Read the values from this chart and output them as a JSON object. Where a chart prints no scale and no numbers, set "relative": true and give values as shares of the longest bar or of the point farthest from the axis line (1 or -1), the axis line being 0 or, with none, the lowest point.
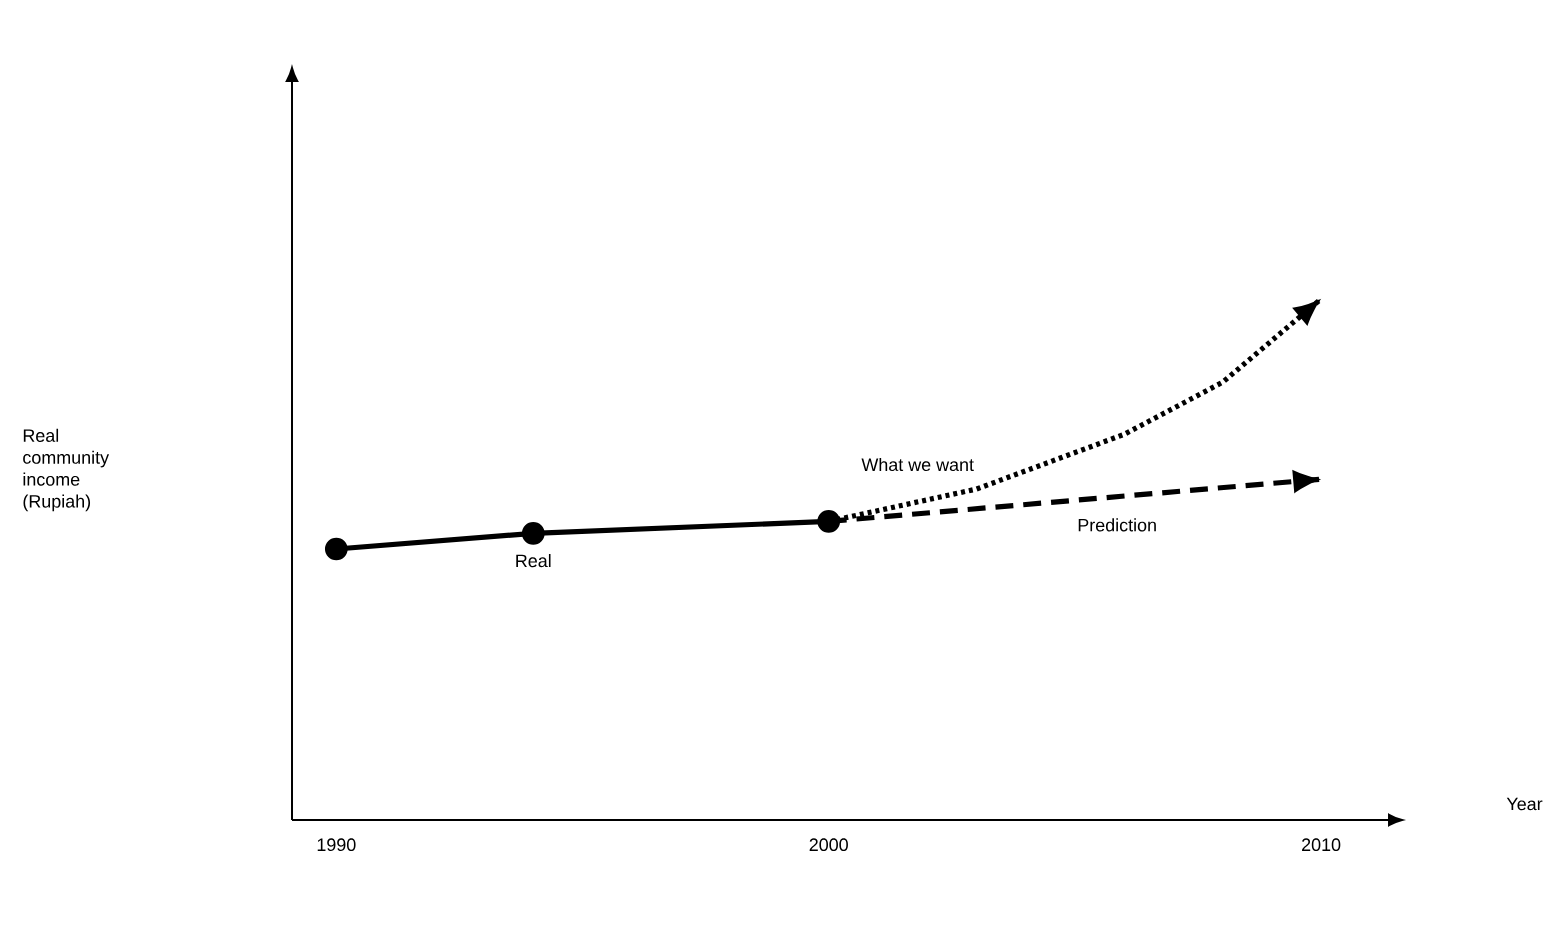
{
  "chart_data": {
    "type": "line",
    "relative": true,
    "annotations": [
      "Year",
      "Real community income (Rupiah)"
    ],
    "xlim": [
      1989.1,
      2011.4
    ],
    "xticks": [
      1990,
      2000,
      2010
    ],
    "series": [
      {
        "name": "Real",
        "color": "#000000",
        "line_style": "solid",
        "marker": "circle",
        "x": [
          1990,
          1994,
          2000
        ],
        "values": [
          0.52,
          0.55,
          0.573
        ]
      },
      {
        "name": "What we want",
        "color": "#000000",
        "line_style": "dotted",
        "marker": "none",
        "x": [
          2000,
          2003,
          2006,
          2008,
          2010
        ],
        "values": [
          0.573,
          0.635,
          0.74,
          0.84,
          1.0
        ]
      },
      {
        "name": "Prediction",
        "color": "#000000",
        "line_style": "dashed",
        "marker": "none",
        "x": [
          2000,
          2010
        ],
        "values": [
          0.573,
          0.654
        ]
      }
    ]
  }
}
